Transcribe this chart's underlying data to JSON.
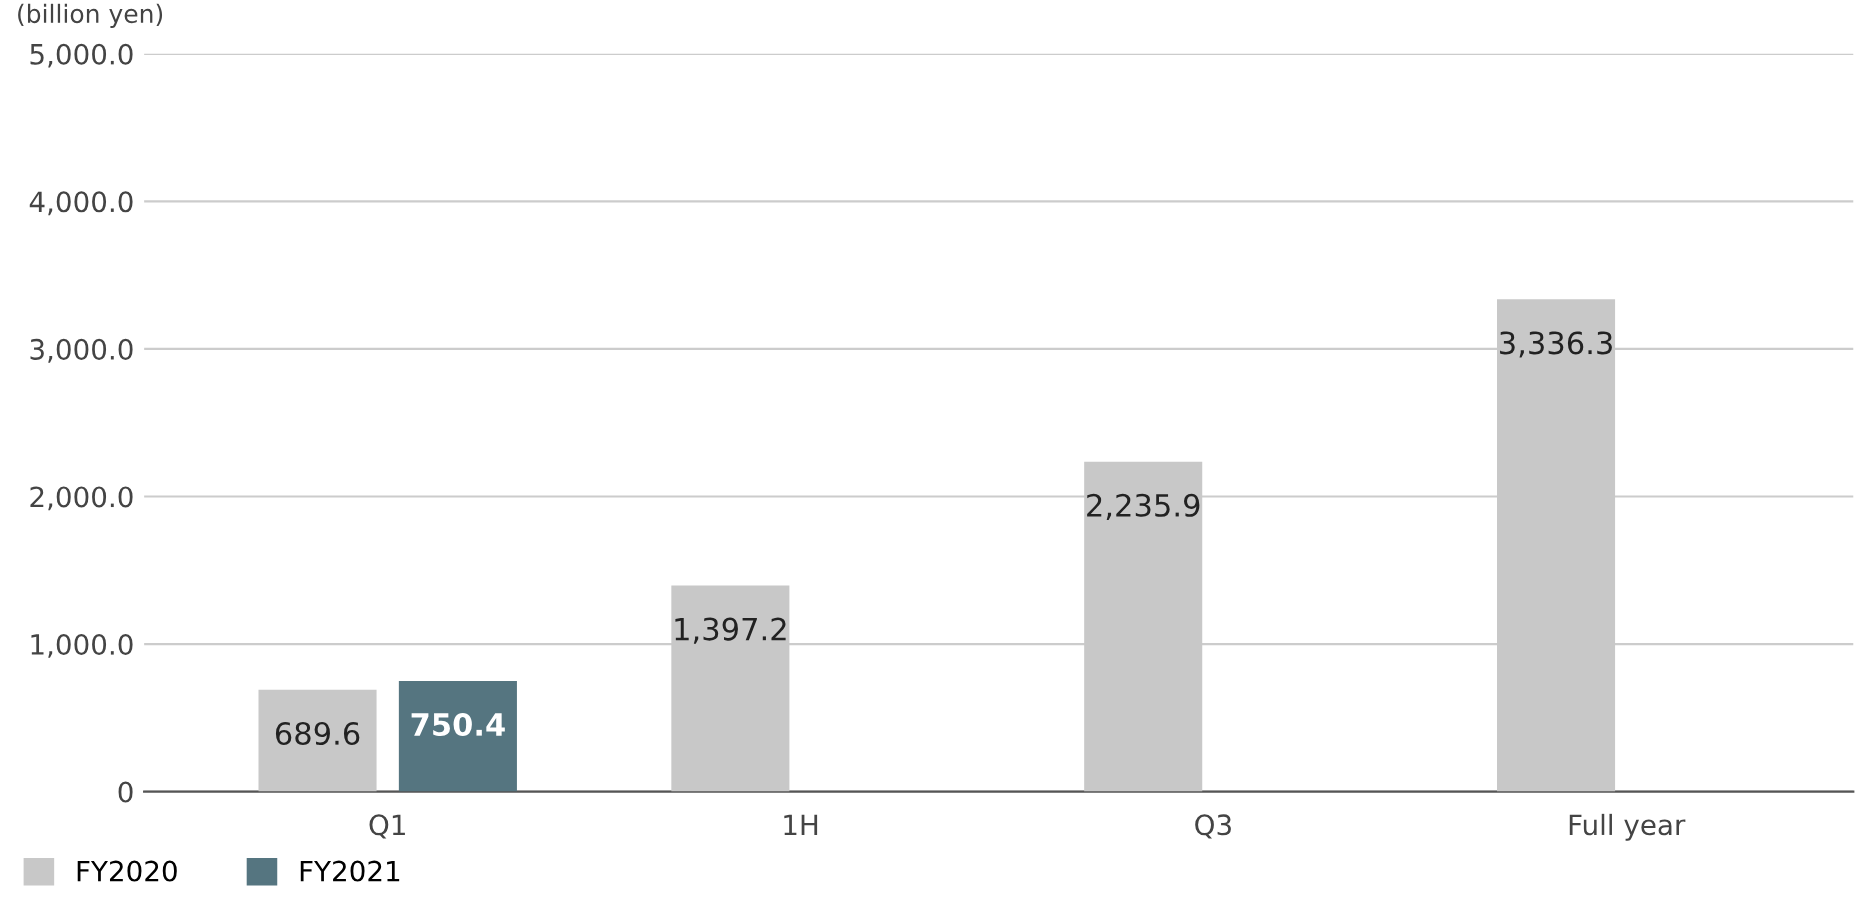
{
  "chart_data": {
    "type": "bar",
    "ylabel": "(billion yen)",
    "categories": [
      "Q1",
      "1H",
      "Q3",
      "Full year"
    ],
    "series": [
      {
        "name": "FY2020",
        "color": "#c8c8c8",
        "values": [
          689.6,
          1397.2,
          2235.9,
          3336.3
        ],
        "value_labels": [
          "689.6",
          "1,397.2",
          "2,235.9",
          "3,336.3"
        ]
      },
      {
        "name": "FY2021",
        "color": "#557580",
        "values": [
          750.4,
          null,
          null,
          null
        ],
        "value_labels": [
          "750.4",
          null,
          null,
          null
        ]
      }
    ],
    "ylim": [
      0,
      5000
    ],
    "yticks": [
      0,
      {
        "value": 1000,
        "label": "1,000.0"
      },
      {
        "value": 2000,
        "label": "2,000.0"
      },
      {
        "value": 3000,
        "label": "3,000.0"
      },
      {
        "value": 4000,
        "label": "4,000.0"
      },
      {
        "value": 5000,
        "label": "5,000.0"
      }
    ],
    "grid": "y",
    "legend": "bottom left"
  }
}
